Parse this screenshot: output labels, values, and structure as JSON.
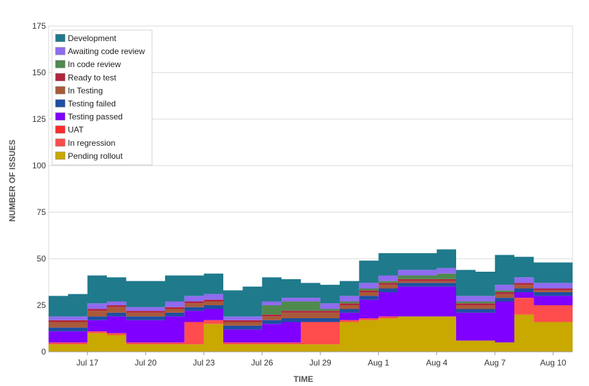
{
  "chart_data": {
    "type": "area",
    "stacked": true,
    "xlabel": "TIME",
    "ylabel": "NUMBER OF ISSUES",
    "ylim": [
      0,
      175
    ],
    "yticks": [
      0,
      25,
      50,
      75,
      100,
      125,
      150,
      175
    ],
    "xlim": [
      "2023-07-15",
      "2023-08-11"
    ],
    "xticks": [
      {
        "date": "2023-07-17",
        "label": "Jul 17"
      },
      {
        "date": "2023-07-20",
        "label": "Jul 20"
      },
      {
        "date": "2023-07-23",
        "label": "Jul 23"
      },
      {
        "date": "2023-07-26",
        "label": "Jul 26"
      },
      {
        "date": "2023-07-29",
        "label": "Jul 29"
      },
      {
        "date": "2023-08-01",
        "label": "Aug 1"
      },
      {
        "date": "2023-08-04",
        "label": "Aug 4"
      },
      {
        "date": "2023-08-07",
        "label": "Aug 7"
      },
      {
        "date": "2023-08-10",
        "label": "Aug 10"
      }
    ],
    "grid": "horizontal",
    "legend_position": "top-left",
    "x": [
      "2023-07-15",
      "2023-07-16",
      "2023-07-17",
      "2023-07-18",
      "2023-07-19",
      "2023-07-20",
      "2023-07-21",
      "2023-07-22",
      "2023-07-23",
      "2023-07-24",
      "2023-07-25",
      "2023-07-26",
      "2023-07-27",
      "2023-07-28",
      "2023-07-29",
      "2023-07-30",
      "2023-07-31",
      "2023-08-01",
      "2023-08-02",
      "2023-08-03",
      "2023-08-04",
      "2023-08-05",
      "2023-08-06",
      "2023-08-07",
      "2023-08-08",
      "2023-08-09",
      "2023-08-10",
      "2023-08-11"
    ],
    "series": [
      {
        "name": "Pending rollout",
        "color": "#c9a800",
        "values": [
          4,
          4,
          10,
          9,
          4,
          4,
          4,
          4,
          15,
          4,
          4,
          4,
          4,
          4,
          4,
          16,
          17,
          18,
          19,
          19,
          19,
          6,
          6,
          5,
          20,
          16,
          16,
          16
        ]
      },
      {
        "name": "In regression",
        "color": "#ff4d4d",
        "values": [
          1,
          1,
          1,
          1,
          1,
          1,
          1,
          12,
          2,
          1,
          1,
          1,
          1,
          12,
          12,
          1,
          1,
          1,
          0,
          0,
          0,
          0,
          0,
          0,
          9,
          9,
          9,
          9
        ]
      },
      {
        "name": "UAT",
        "color": "#ff2d2d",
        "values": [
          0,
          0,
          0,
          0,
          0,
          0,
          0,
          0,
          0,
          0,
          0,
          0,
          0,
          0,
          0,
          0,
          0,
          0,
          0,
          0,
          0,
          0,
          0,
          0,
          0,
          0,
          0,
          0
        ]
      },
      {
        "name": "Testing passed",
        "color": "#7f00ff",
        "values": [
          6,
          6,
          6,
          9,
          12,
          12,
          14,
          6,
          6,
          7,
          7,
          10,
          11,
          0,
          0,
          4,
          10,
          13,
          16,
          16,
          16,
          15,
          15,
          22,
          3,
          5,
          5,
          5
        ]
      },
      {
        "name": "Testing failed",
        "color": "#1e4fa3",
        "values": [
          2,
          2,
          2,
          2,
          2,
          2,
          2,
          2,
          2,
          2,
          2,
          2,
          2,
          2,
          2,
          2,
          2,
          2,
          2,
          2,
          2,
          2,
          2,
          2,
          2,
          2,
          2,
          2
        ]
      },
      {
        "name": "In Testing",
        "color": "#a85a3a",
        "values": [
          3,
          3,
          3,
          3,
          2,
          2,
          2,
          2,
          2,
          2,
          2,
          2,
          3,
          3,
          3,
          2,
          2,
          2,
          1,
          1,
          1,
          2,
          2,
          2,
          2,
          1,
          1,
          1
        ]
      },
      {
        "name": "Ready to test",
        "color": "#b0263f",
        "values": [
          1,
          1,
          1,
          1,
          1,
          1,
          1,
          1,
          1,
          1,
          1,
          1,
          1,
          1,
          1,
          1,
          1,
          1,
          1,
          1,
          1,
          1,
          1,
          1,
          1,
          1,
          1,
          1
        ]
      },
      {
        "name": "In code review",
        "color": "#4f8a4f",
        "values": [
          0,
          0,
          0,
          0,
          0,
          0,
          0,
          0,
          0,
          0,
          0,
          5,
          5,
          5,
          1,
          1,
          1,
          1,
          2,
          2,
          3,
          1,
          1,
          1,
          0,
          0,
          0,
          0
        ]
      },
      {
        "name": "Awaiting code review",
        "color": "#8f6bf0",
        "values": [
          2,
          2,
          3,
          2,
          2,
          2,
          3,
          3,
          3,
          2,
          2,
          2,
          2,
          2,
          3,
          3,
          3,
          3,
          3,
          3,
          3,
          3,
          3,
          3,
          3,
          3,
          3,
          3
        ]
      },
      {
        "name": "Development",
        "color": "#1f7a8c",
        "values": [
          11,
          12,
          15,
          13,
          14,
          14,
          14,
          11,
          11,
          14,
          16,
          13,
          10,
          8,
          10,
          8,
          12,
          12,
          9,
          9,
          10,
          14,
          13,
          16,
          11,
          11,
          11,
          11
        ]
      }
    ]
  }
}
